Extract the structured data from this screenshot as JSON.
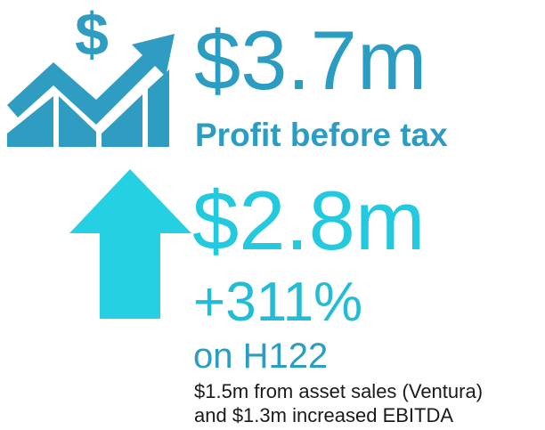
{
  "headline": {
    "value": "$3.7m",
    "label": "Profit before tax"
  },
  "change": {
    "value": "$2.8m",
    "percent": "+311%",
    "comparison": "on H122"
  },
  "note": [
    "$1.5m from asset sales (Ventura)",
    "and $1.3m increased EBITDA"
  ]
}
